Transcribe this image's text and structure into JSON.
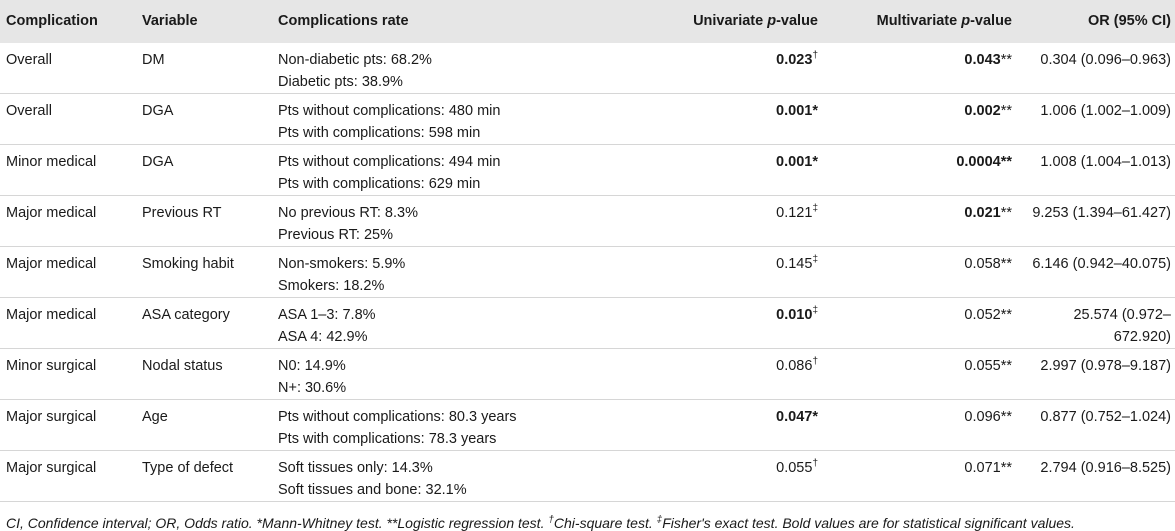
{
  "headers": {
    "complication": "Complication",
    "variable": "Variable",
    "rate": "Complications rate",
    "univariate_prefix": "Univariate ",
    "univariate_p": "p",
    "univariate_suffix": "-value",
    "multivariate_prefix": "Multivariate ",
    "multivariate_p": "p",
    "multivariate_suffix": "-value",
    "or": "OR (95% CI)"
  },
  "rows": [
    {
      "complication": "Overall",
      "variable": "DM",
      "rate_1": "Non-diabetic pts: 68.2%",
      "rate_2": "Diabetic pts: 38.9%",
      "uni_value": "0.023",
      "uni_mark": "†",
      "multi_value": "0.043",
      "multi_mark": "**",
      "or": "0.304 (0.096–0.963)"
    },
    {
      "complication": "Overall",
      "variable": "DGA",
      "rate_1": "Pts without complications: 480 min",
      "rate_2": "Pts with complications: 598 min",
      "uni_value": "0.001",
      "uni_mark": "*",
      "multi_value": "0.002",
      "multi_mark": "**",
      "or": "1.006 (1.002–1.009)"
    },
    {
      "complication": "Minor medical",
      "variable": "DGA",
      "rate_1": "Pts without complications: 494 min",
      "rate_2": "Pts with complications: 629 min",
      "uni_value": "0.001",
      "uni_mark": "*",
      "multi_value": "0.0004",
      "multi_mark": "**",
      "or": "1.008 (1.004–1.013)"
    },
    {
      "complication": "Major medical",
      "variable": "Previous RT",
      "rate_1": "No previous RT: 8.3%",
      "rate_2": "Previous RT: 25%",
      "uni_value": "0.121",
      "uni_mark": "‡",
      "multi_value": "0.021",
      "multi_mark": "**",
      "or": "9.253 (1.394–61.427)"
    },
    {
      "complication": "Major medical",
      "variable": "Smoking habit",
      "rate_1": "Non-smokers: 5.9%",
      "rate_2": "Smokers: 18.2%",
      "uni_value": "0.145",
      "uni_mark": "‡",
      "multi_value": "0.058",
      "multi_mark": "**",
      "or": "6.146 (0.942–40.075)"
    },
    {
      "complication": "Major medical",
      "variable": "ASA category",
      "rate_1": "ASA 1–3: 7.8%",
      "rate_2": "ASA 4: 42.9%",
      "uni_value": "0.010",
      "uni_mark": "‡",
      "multi_value": "0.052",
      "multi_mark": "**",
      "or": "25.574 (0.972–672.920)"
    },
    {
      "complication": "Minor surgical",
      "variable": "Nodal status",
      "rate_1": "N0: 14.9%",
      "rate_2": "N+: 30.6%",
      "uni_value": "0.086",
      "uni_mark": "†",
      "multi_value": "0.055",
      "multi_mark": "**",
      "or": "2.997 (0.978–9.187)"
    },
    {
      "complication": "Major surgical",
      "variable": "Age",
      "rate_1": "Pts without complications: 80.3 years",
      "rate_2": "Pts with complications: 78.3 years",
      "uni_value": "0.047",
      "uni_mark": "*",
      "multi_value": "0.096",
      "multi_mark": "**",
      "or": "0.877 (0.752–1.024)"
    },
    {
      "complication": "Major surgical",
      "variable": "Type of defect",
      "rate_1": "Soft tissues only: 14.3%",
      "rate_2": "Soft tissues and bone: 32.1%",
      "uni_value": "0.055",
      "uni_mark": "†",
      "multi_value": "0.071",
      "multi_mark": "**",
      "or": "2.794 (0.916–8.525)"
    }
  ],
  "footer": {
    "part1": "CI, Confidence interval; OR, Odds ratio. *Mann-Whitney test. **Logistic regression test. ",
    "dagger": "†",
    "part2": "Chi-square test. ",
    "ddagger": "‡",
    "part3": "Fisher's exact test. Bold values are for statistical significant values."
  }
}
